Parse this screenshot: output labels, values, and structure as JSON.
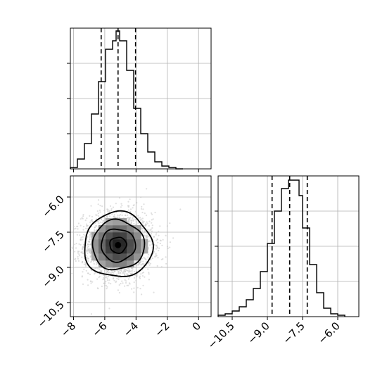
{
  "chart_data": [
    {
      "type": "histogram",
      "panel": "top-left",
      "xlim": [
        -8.2,
        0.8
      ],
      "x_ticks": [
        -8,
        -6,
        -4,
        -2,
        0
      ],
      "x_tick_labels_visible": false,
      "y_ticks": [
        0.25,
        0.5,
        0.75
      ],
      "y_tick_labels_visible": false,
      "ymax": 1.0,
      "bin_edges": [
        -8.2,
        -7.75,
        -7.3,
        -6.85,
        -6.4,
        -5.95,
        -5.5,
        -5.275,
        -5.05,
        -4.6,
        -4.15,
        -3.7,
        -3.25,
        -2.8,
        -2.35,
        -1.9,
        -1.45,
        -1.0
      ],
      "counts": [
        0.01,
        0.07,
        0.18,
        0.39,
        0.62,
        0.85,
        0.91,
        0.98,
        0.91,
        0.7,
        0.43,
        0.25,
        0.12,
        0.05,
        0.02,
        0.01,
        0.0
      ],
      "quantiles": [
        -6.23,
        -5.15,
        -4.03
      ],
      "grid": true
    },
    {
      "type": "histogram",
      "panel": "bottom-right",
      "xlim": [
        -11.1,
        -5.1
      ],
      "x_ticks": [
        -10.5,
        -9.0,
        -7.5,
        -6.0
      ],
      "x_tick_labels": [
        "−10.5",
        "−9.0",
        "−7.5",
        "−6.0"
      ],
      "y_ticks": [
        0.25,
        0.5,
        0.75
      ],
      "y_tick_labels_visible": false,
      "ymax": 1.0,
      "bin_edges": [
        -11.1,
        -10.8,
        -10.5,
        -10.2,
        -9.9,
        -9.6,
        -9.3,
        -9.0,
        -8.7,
        -8.4,
        -8.1,
        -7.8,
        -7.65,
        -7.5,
        -7.2,
        -6.9,
        -6.6,
        -6.3,
        -6.0,
        -5.7
      ],
      "counts": [
        0.01,
        0.02,
        0.04,
        0.07,
        0.12,
        0.2,
        0.32,
        0.52,
        0.75,
        0.91,
        0.97,
        0.97,
        0.86,
        0.63,
        0.37,
        0.17,
        0.06,
        0.02,
        0.01
      ],
      "quantiles": [
        -8.8,
        -8.05,
        -7.3
      ],
      "grid": true
    },
    {
      "type": "scatter",
      "panel": "bottom-left",
      "xlim": [
        -8.2,
        0.8
      ],
      "ylim": [
        -11.1,
        -5.1
      ],
      "x_ticks": [
        -8,
        -6,
        -4,
        -2,
        0
      ],
      "x_tick_labels": [
        "−8",
        "−6",
        "−4",
        "−2",
        "0"
      ],
      "y_ticks": [
        -10.5,
        -9.0,
        -7.5,
        -6.0
      ],
      "y_tick_labels": [
        "−10.5",
        "−9.0",
        "−7.5",
        "−6.0"
      ],
      "grid": true,
      "density_center": [
        -5.15,
        -8.05
      ],
      "density_sigma": [
        1.1,
        0.7
      ],
      "contours": [
        {
          "level": 0.11,
          "color": "#000000"
        },
        {
          "level": 0.39,
          "color": "#000000"
        },
        {
          "level": 0.68,
          "color": "#000000"
        },
        {
          "level": 0.86,
          "color": "#000000"
        }
      ],
      "point_color": "#c7c7c7",
      "line_color": "#000000"
    }
  ]
}
